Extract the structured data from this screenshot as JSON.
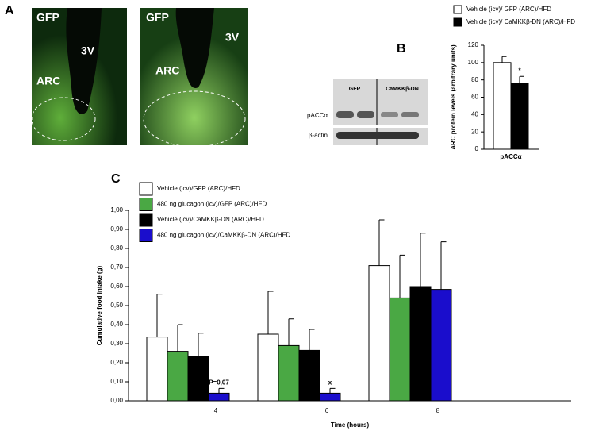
{
  "panels": {
    "a": {
      "label": "A",
      "images": [
        {
          "labels": [
            "GFP",
            "3V",
            "ARC"
          ]
        },
        {
          "labels": [
            "GFP",
            "3V",
            "ARC"
          ]
        }
      ]
    },
    "b": {
      "label": "B",
      "blot": {
        "rows": [
          "pACCα",
          "β-actin"
        ],
        "columns": [
          "GFP",
          "CaMKKβ-DN"
        ]
      }
    },
    "c": {
      "label": "C"
    }
  },
  "chart_data": [
    {
      "type": "bar",
      "ylabel": "ARC protein levels (arbitrary units)",
      "categories": [
        "pACCα"
      ],
      "series": [
        {
          "name": "Vehicle (icv)/ GFP (ARC)/HFD",
          "color": "#ffffff",
          "values": [
            100
          ],
          "errors": [
            7
          ]
        },
        {
          "name": "Vehicle (icv)/ CaMKKβ-DN (ARC)/HFD",
          "color": "#000000",
          "values": [
            76
          ],
          "errors": [
            8
          ]
        }
      ],
      "annotations": [
        "*"
      ],
      "ylim": [
        0,
        120
      ],
      "yticks": [
        0,
        20,
        40,
        60,
        80,
        100,
        120
      ]
    },
    {
      "type": "bar",
      "xlabel": "Time (hours)",
      "ylabel": "Cumulative food intake (g)",
      "categories": [
        "4",
        "6",
        "8"
      ],
      "series": [
        {
          "name": "Vehicle (icv)/GFP (ARC)/HFD",
          "color": "#ffffff",
          "values": [
            0.335,
            0.35,
            0.71
          ],
          "errors": [
            0.225,
            0.225,
            0.24
          ]
        },
        {
          "name": "480 ng glucagon (icv)/GFP (ARC)/HFD",
          "color": "#4aa844",
          "values": [
            0.26,
            0.29,
            0.54
          ],
          "errors": [
            0.14,
            0.14,
            0.225
          ]
        },
        {
          "name": "Vehicle (icv)/CaMKKβ-DN (ARC)/HFD",
          "color": "#000000",
          "values": [
            0.235,
            0.265,
            0.6
          ],
          "errors": [
            0.12,
            0.11,
            0.28
          ]
        },
        {
          "name": "480 ng glucagon (icv)/CaMKKβ-DN (ARC)/HFD",
          "color": "#1a0dcc",
          "values": [
            0.04,
            0.04,
            0.585
          ],
          "errors": [
            0.025,
            0.025,
            0.25
          ]
        }
      ],
      "annotations": [
        "P=0,07",
        "x"
      ],
      "ylim": [
        0,
        1
      ],
      "yticks": [
        {
          "value": 0,
          "label": "0,00"
        },
        {
          "value": 0.1,
          "label": "0,10"
        },
        {
          "value": 0.2,
          "label": "0,20"
        },
        {
          "value": 0.3,
          "label": "0,30"
        },
        {
          "value": 0.4,
          "label": "0,40"
        },
        {
          "value": 0.5,
          "label": "0,50"
        },
        {
          "value": 0.6,
          "label": "0,60"
        },
        {
          "value": 0.7,
          "label": "0,70"
        },
        {
          "value": 0.8,
          "label": "0,80"
        },
        {
          "value": 0.9,
          "label": "0,90"
        },
        {
          "value": 1,
          "label": "1,00"
        }
      ]
    }
  ]
}
